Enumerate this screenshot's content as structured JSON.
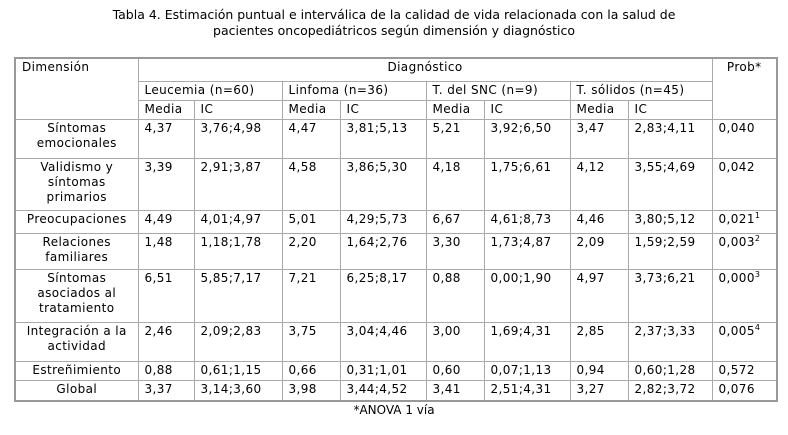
{
  "title": "Tabla 4. Estimación puntual e interválica  de la calidad de vida relacionada con la salud de pacientes oncopediátricos según dimensión y diagnóstico",
  "table": {
    "header": {
      "dimension": "Dimensión",
      "diagnosis": "Diagnóstico",
      "prob": "Prob*",
      "groups": [
        "Leucemia (n=60)",
        "Linfoma (n=36)",
        "T. del SNC (n=9)",
        "T.  sólidos (n=45)"
      ],
      "subheaders": [
        "Media",
        "IC",
        "Media",
        "IC",
        "Media",
        "IC",
        "Media",
        "IC"
      ]
    },
    "rows": [
      {
        "dimension": "Síntomas emocionales",
        "cells": [
          "4,37",
          "3,76;4,98",
          "4,47",
          "3,81;5,13",
          "5,21",
          "3,92;6,50",
          "3,47",
          "2,83;4,11"
        ],
        "prob": "0,040"
      },
      {
        "dimension": "Validismo y síntomas primarios",
        "cells": [
          "3,39",
          "2,91;3,87",
          "4,58",
          "3,86;5,30",
          "4,18",
          "1,75;6,61",
          "4,12",
          "3,55;4,69"
        ],
        "prob": "0,042"
      },
      {
        "dimension": "Preocupaciones",
        "cells": [
          "4,49",
          "4,01;4,97",
          "5,01",
          "4,29;5,73",
          "6,67",
          "4,61;8,73",
          "4,46",
          "3,80;5,12"
        ],
        "prob": "0,021",
        "prob_note": "1"
      },
      {
        "dimension": "Relaciones familiares",
        "cells": [
          "1,48",
          "1,18;1,78",
          "2,20",
          "1,64;2,76",
          "3,30",
          "1,73;4,87",
          "2,09",
          "1,59;2,59"
        ],
        "prob": "0,003",
        "prob_note": "2"
      },
      {
        "dimension": "Síntomas asociados al tratamiento",
        "cells": [
          "6,51",
          "5,85;7,17",
          "7,21",
          "6,25;8,17",
          "0,88",
          "0,00;1,90",
          "4,97",
          "3,73;6,21"
        ],
        "prob": "0,000",
        "prob_note": "3"
      },
      {
        "dimension": "Integración a la actividad",
        "cells": [
          "2,46",
          "2,09;2,83",
          "3,75",
          "3,04;4,46",
          "3,00",
          "1,69;4,31",
          "2,85",
          "2,37;3,33"
        ],
        "prob": "0,005",
        "prob_note": "4"
      },
      {
        "dimension": "Estreñimiento",
        "cells": [
          "0,88",
          "0,61;1,15",
          "0,66",
          "0,31;1,01",
          "0,60",
          "0,07;1,13",
          "0,94",
          "0,60;1,28"
        ],
        "prob": "0,572"
      },
      {
        "dimension": "Global",
        "cells": [
          "3,37",
          "3,14;3,60",
          "3,98",
          "3,44;4,52",
          "3,41",
          "2,51;4,31",
          "3,27",
          "2,82;3,72"
        ],
        "prob": "0,076"
      }
    ]
  },
  "footnote": "*ANOVA 1 vía"
}
